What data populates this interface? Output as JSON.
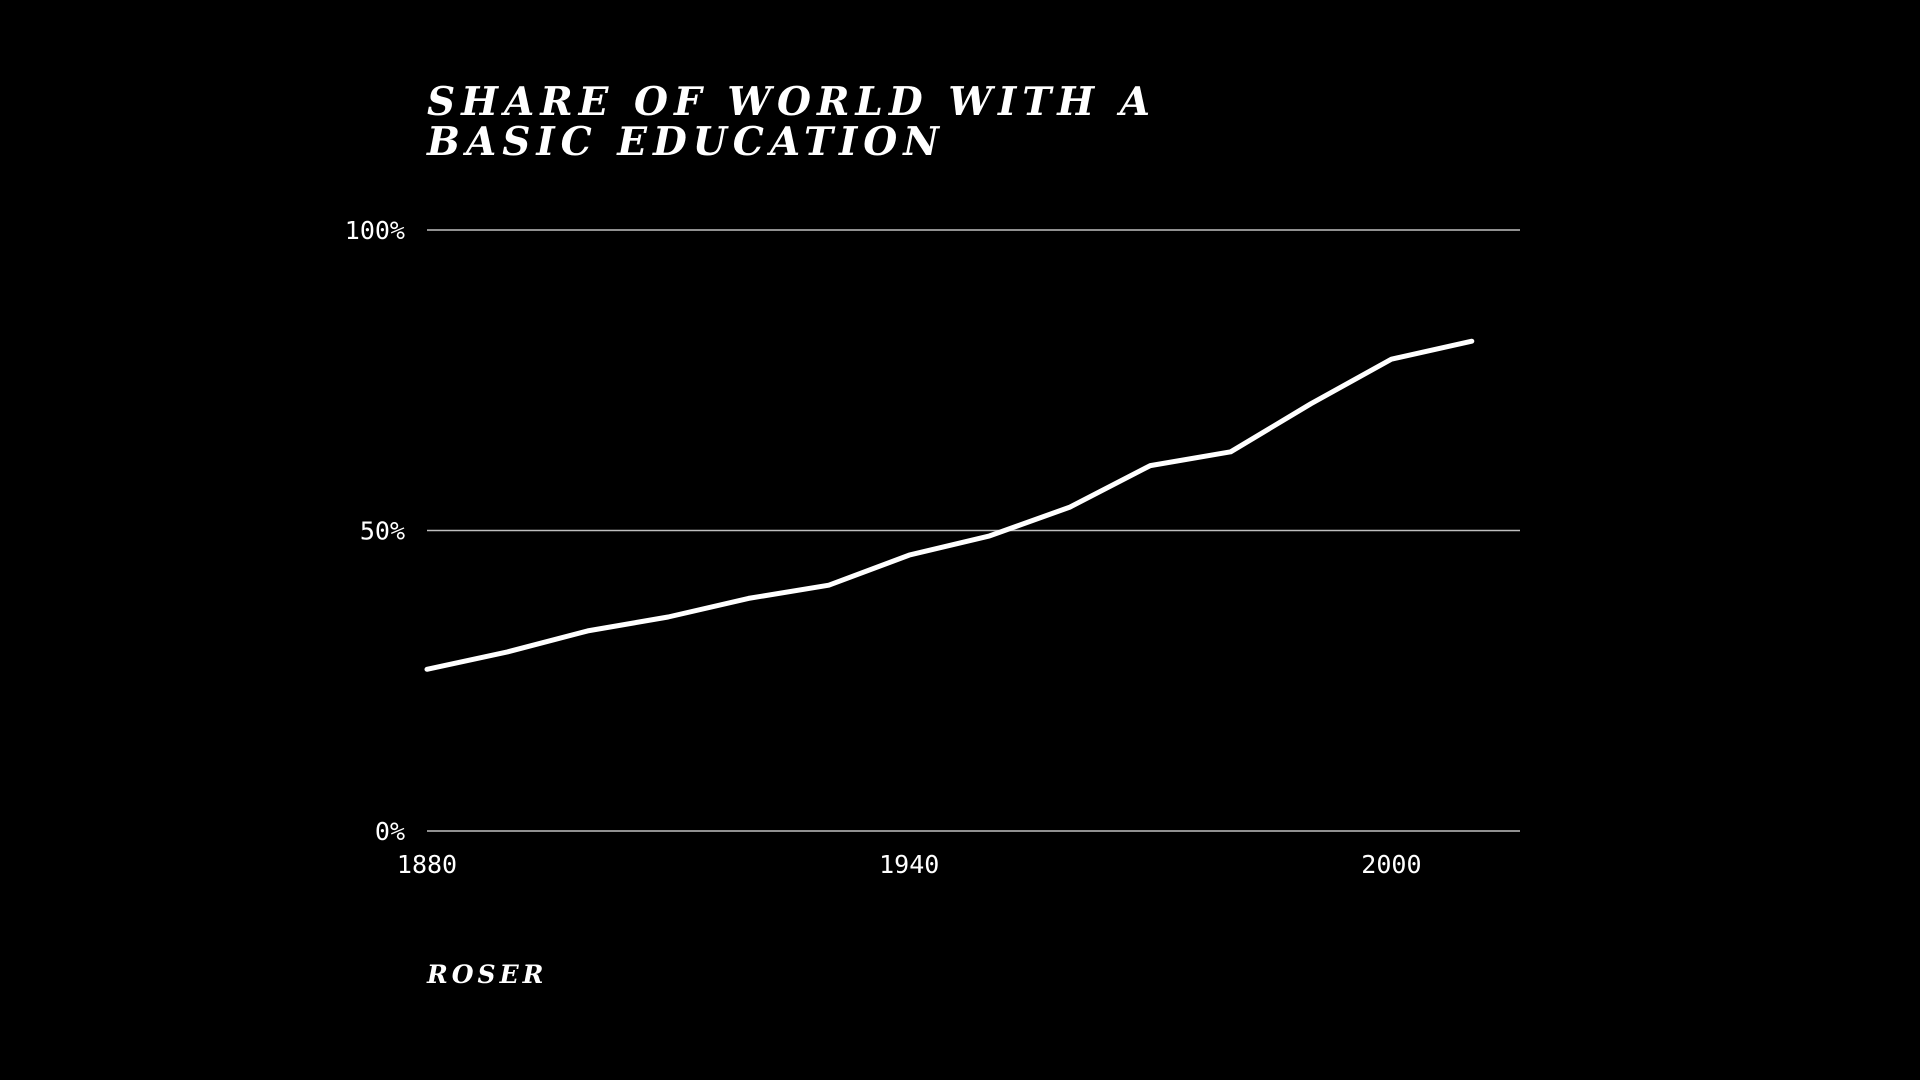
{
  "chart_data": {
    "type": "line",
    "title": "SHARE OF WORLD WITH A BASIC EDUCATION",
    "xlabel": "",
    "ylabel": "",
    "xlim": [
      1880,
      2016
    ],
    "ylim": [
      0,
      100
    ],
    "x_ticks": [
      1880,
      1940,
      2000
    ],
    "x_tick_labels": [
      "1880",
      "1940",
      "2000"
    ],
    "y_ticks": [
      0,
      50,
      100
    ],
    "y_tick_labels": [
      "0%",
      "50%",
      "100%"
    ],
    "grid": "horizontal",
    "legend": "none",
    "line_color": "#ffffff",
    "background": "#000000",
    "series": [
      {
        "x": [
          1880,
          1890,
          1900,
          1910,
          1920,
          1930,
          1940,
          1950,
          1960,
          1970,
          1980,
          1990,
          2000,
          2010
        ],
        "values": [
          26.9,
          29.8,
          33.3,
          35.6,
          38.7,
          40.9,
          45.9,
          49.1,
          53.9,
          60.8,
          63.1,
          71.1,
          78.5,
          81.5
        ]
      }
    ]
  },
  "credit": "ROSER"
}
